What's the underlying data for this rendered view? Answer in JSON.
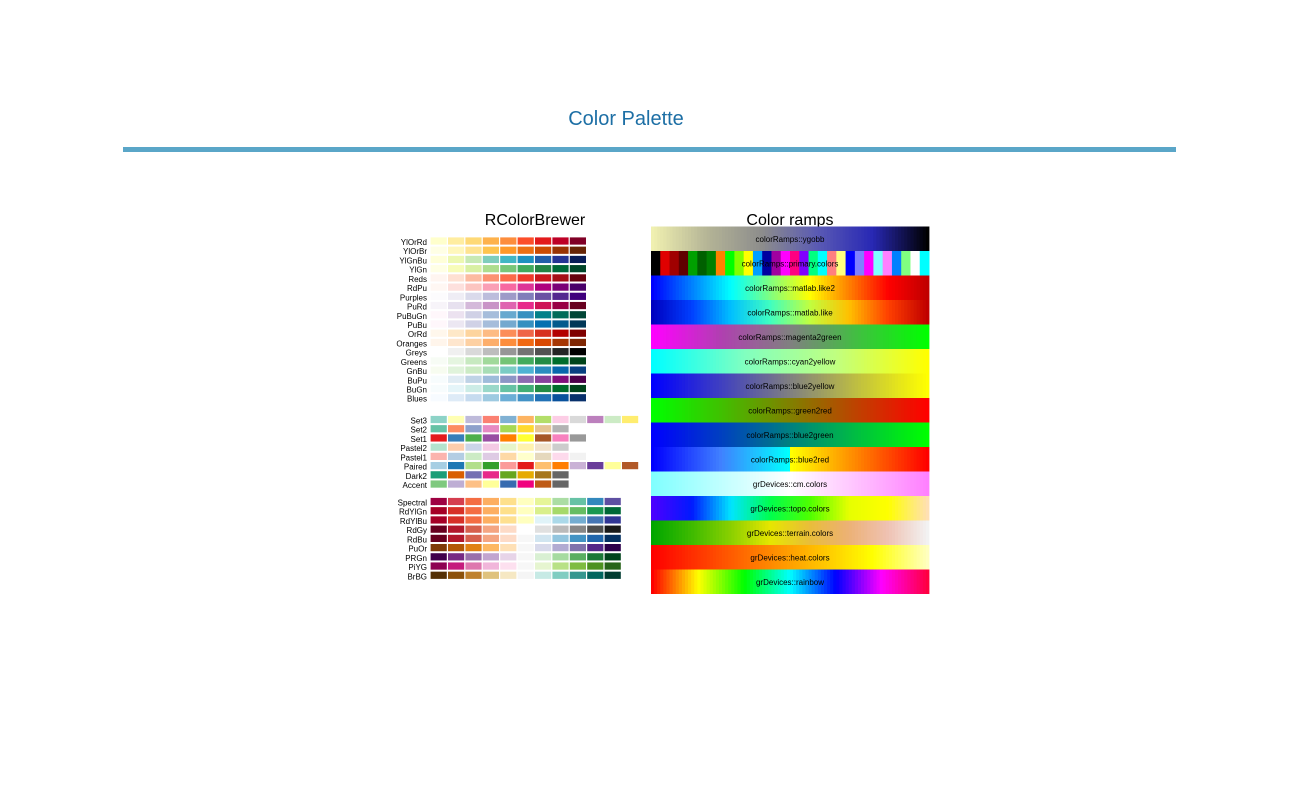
{
  "page": {
    "title": "Color Palette"
  },
  "colors": {
    "title": "#1d6fa5",
    "rule": "#5aa6c8"
  },
  "chart_data": [
    {
      "type": "table",
      "title": "RColorBrewer",
      "groups": [
        {
          "kind": "sequential",
          "palettes": [
            {
              "name": "YlOrRd",
              "colors": [
                "#ffffcc",
                "#ffeda0",
                "#fed976",
                "#feb24c",
                "#fd8d3c",
                "#fc4e2a",
                "#e31a1c",
                "#bd0026",
                "#800026"
              ]
            },
            {
              "name": "YlOrBr",
              "colors": [
                "#ffffe5",
                "#fff7bc",
                "#fee391",
                "#fec44f",
                "#fe9929",
                "#ec7014",
                "#cc4c02",
                "#993404",
                "#662506"
              ]
            },
            {
              "name": "YlGnBu",
              "colors": [
                "#ffffd9",
                "#edf8b1",
                "#c7e9b4",
                "#7fcdbb",
                "#41b6c4",
                "#1d91c0",
                "#225ea8",
                "#253494",
                "#081d58"
              ]
            },
            {
              "name": "YlGn",
              "colors": [
                "#ffffe5",
                "#f7fcb9",
                "#d9f0a3",
                "#addd8e",
                "#78c679",
                "#41ab5d",
                "#238443",
                "#006837",
                "#004529"
              ]
            },
            {
              "name": "Reds",
              "colors": [
                "#fff5f0",
                "#fee0d2",
                "#fcbba1",
                "#fc9272",
                "#fb6a4a",
                "#ef3b2c",
                "#cb181d",
                "#a50f15",
                "#67000d"
              ]
            },
            {
              "name": "RdPu",
              "colors": [
                "#fff7f3",
                "#fde0dd",
                "#fcc5c0",
                "#fa9fb5",
                "#f768a1",
                "#dd3497",
                "#ae017e",
                "#7a0177",
                "#49006a"
              ]
            },
            {
              "name": "Purples",
              "colors": [
                "#fcfbfd",
                "#efedf5",
                "#dadaeb",
                "#bcbddc",
                "#9e9ac8",
                "#807dba",
                "#6a51a3",
                "#54278f",
                "#3f007d"
              ]
            },
            {
              "name": "PuRd",
              "colors": [
                "#f7f4f9",
                "#e7e1ef",
                "#d4b9da",
                "#c994c7",
                "#df65b0",
                "#e7298a",
                "#ce1256",
                "#980043",
                "#67001f"
              ]
            },
            {
              "name": "PuBuGn",
              "colors": [
                "#fff7fb",
                "#ece2f0",
                "#d0d1e6",
                "#a6bddb",
                "#67a9cf",
                "#3690c0",
                "#02818a",
                "#016c59",
                "#014636"
              ]
            },
            {
              "name": "PuBu",
              "colors": [
                "#fff7fb",
                "#ece7f2",
                "#d0d1e6",
                "#a6bddb",
                "#74a9cf",
                "#3690c0",
                "#0570b0",
                "#045a8d",
                "#023858"
              ]
            },
            {
              "name": "OrRd",
              "colors": [
                "#fff7ec",
                "#fee8c8",
                "#fdd49e",
                "#fdbb84",
                "#fc8d59",
                "#ef6548",
                "#d7301f",
                "#b30000",
                "#7f0000"
              ]
            },
            {
              "name": "Oranges",
              "colors": [
                "#fff5eb",
                "#fee6ce",
                "#fdd0a2",
                "#fdae6b",
                "#fd8d3c",
                "#f16913",
                "#d94801",
                "#a63603",
                "#7f2704"
              ]
            },
            {
              "name": "Greys",
              "colors": [
                "#ffffff",
                "#f0f0f0",
                "#d9d9d9",
                "#bdbdbd",
                "#969696",
                "#737373",
                "#525252",
                "#252525",
                "#000000"
              ]
            },
            {
              "name": "Greens",
              "colors": [
                "#f7fcf5",
                "#e5f5e0",
                "#c7e9c0",
                "#a1d99b",
                "#74c476",
                "#41ab5d",
                "#238b45",
                "#006d2c",
                "#00441b"
              ]
            },
            {
              "name": "GnBu",
              "colors": [
                "#f7fcf0",
                "#e0f3db",
                "#ccebc5",
                "#a8ddb5",
                "#7bccc4",
                "#4eb3d3",
                "#2b8cbe",
                "#0868ac",
                "#084081"
              ]
            },
            {
              "name": "BuPu",
              "colors": [
                "#f7fcfd",
                "#e0ecf4",
                "#bfd3e6",
                "#9ebcda",
                "#8c96c6",
                "#8c6bb1",
                "#88419d",
                "#810f7c",
                "#4d004b"
              ]
            },
            {
              "name": "BuGn",
              "colors": [
                "#f7fcfd",
                "#e5f5f9",
                "#ccece6",
                "#99d8c9",
                "#66c2a4",
                "#41ae76",
                "#238b45",
                "#006d2c",
                "#00441b"
              ]
            },
            {
              "name": "Blues",
              "colors": [
                "#f7fbff",
                "#deebf7",
                "#c6dbef",
                "#9ecae1",
                "#6baed6",
                "#4292c6",
                "#2171b5",
                "#08519c",
                "#08306b"
              ]
            }
          ]
        },
        {
          "kind": "qualitative",
          "palettes": [
            {
              "name": "Set3",
              "colors": [
                "#8dd3c7",
                "#ffffb3",
                "#bebada",
                "#fb8072",
                "#80b1d3",
                "#fdb462",
                "#b3de69",
                "#fccde5",
                "#d9d9d9",
                "#bc80bd",
                "#ccebc5",
                "#ffed6f"
              ]
            },
            {
              "name": "Set2",
              "colors": [
                "#66c2a5",
                "#fc8d62",
                "#8da0cb",
                "#e78ac3",
                "#a6d854",
                "#ffd92f",
                "#e5c494",
                "#b3b3b3"
              ]
            },
            {
              "name": "Set1",
              "colors": [
                "#e41a1c",
                "#377eb8",
                "#4daf4a",
                "#984ea3",
                "#ff7f00",
                "#ffff33",
                "#a65628",
                "#f781bf",
                "#999999"
              ]
            },
            {
              "name": "Pastel2",
              "colors": [
                "#b3e2cd",
                "#fdcdac",
                "#cbd5e8",
                "#f4cae4",
                "#e6f5c9",
                "#fff2ae",
                "#f1e2cc",
                "#cccccc"
              ]
            },
            {
              "name": "Pastel1",
              "colors": [
                "#fbb4ae",
                "#b3cde3",
                "#ccebc5",
                "#decbe4",
                "#fed9a6",
                "#ffffcc",
                "#e5d8bd",
                "#fddaec",
                "#f2f2f2"
              ]
            },
            {
              "name": "Paired",
              "colors": [
                "#a6cee3",
                "#1f78b4",
                "#b2df8a",
                "#33a02c",
                "#fb9a99",
                "#e31a1c",
                "#fdbf6f",
                "#ff7f00",
                "#cab2d6",
                "#6a3d9a",
                "#ffff99",
                "#b15928"
              ]
            },
            {
              "name": "Dark2",
              "colors": [
                "#1b9e77",
                "#d95f02",
                "#7570b3",
                "#e7298a",
                "#66a61e",
                "#e6ab02",
                "#a6761d",
                "#666666"
              ]
            },
            {
              "name": "Accent",
              "colors": [
                "#7fc97f",
                "#beaed4",
                "#fdc086",
                "#ffff99",
                "#386cb0",
                "#f0027f",
                "#bf5b17",
                "#666666"
              ]
            }
          ]
        },
        {
          "kind": "diverging",
          "palettes": [
            {
              "name": "Spectral",
              "colors": [
                "#9e0142",
                "#d53e4f",
                "#f46d43",
                "#fdae61",
                "#fee08b",
                "#ffffbf",
                "#e6f598",
                "#abdda4",
                "#66c2a5",
                "#3288bd",
                "#5e4fa2"
              ]
            },
            {
              "name": "RdYlGn",
              "colors": [
                "#a50026",
                "#d73027",
                "#f46d43",
                "#fdae61",
                "#fee08b",
                "#ffffbf",
                "#d9ef8b",
                "#a6d96a",
                "#66bd63",
                "#1a9850",
                "#006837"
              ]
            },
            {
              "name": "RdYlBu",
              "colors": [
                "#a50026",
                "#d73027",
                "#f46d43",
                "#fdae61",
                "#fee090",
                "#ffffbf",
                "#e0f3f8",
                "#abd9e9",
                "#74add1",
                "#4575b4",
                "#313695"
              ]
            },
            {
              "name": "RdGy",
              "colors": [
                "#67001f",
                "#b2182b",
                "#d6604d",
                "#f4a582",
                "#fddbc7",
                "#ffffff",
                "#e0e0e0",
                "#bababa",
                "#878787",
                "#4d4d4d",
                "#1a1a1a"
              ]
            },
            {
              "name": "RdBu",
              "colors": [
                "#67001f",
                "#b2182b",
                "#d6604d",
                "#f4a582",
                "#fddbc7",
                "#f7f7f7",
                "#d1e5f0",
                "#92c5de",
                "#4393c3",
                "#2166ac",
                "#053061"
              ]
            },
            {
              "name": "PuOr",
              "colors": [
                "#7f3b08",
                "#b35806",
                "#e08214",
                "#fdb863",
                "#fee0b6",
                "#f7f7f7",
                "#d8daeb",
                "#b2abd2",
                "#8073ac",
                "#542788",
                "#2d004b"
              ]
            },
            {
              "name": "PRGn",
              "colors": [
                "#40004b",
                "#762a83",
                "#9970ab",
                "#c2a5cf",
                "#e7d4e8",
                "#f7f7f7",
                "#d9f0d3",
                "#a6dba0",
                "#5aae61",
                "#1b7837",
                "#00441b"
              ]
            },
            {
              "name": "PiYG",
              "colors": [
                "#8e0152",
                "#c51b7d",
                "#de77ae",
                "#f1b6da",
                "#fde0ef",
                "#f7f7f7",
                "#e6f5d0",
                "#b8e186",
                "#7fbc41",
                "#4d9221",
                "#276419"
              ]
            },
            {
              "name": "BrBG",
              "colors": [
                "#543005",
                "#8c510a",
                "#bf812d",
                "#dfc27d",
                "#f6e8c3",
                "#f5f5f5",
                "#c7eae5",
                "#80cdc1",
                "#35978f",
                "#01665e",
                "#003c30"
              ]
            }
          ]
        }
      ]
    },
    {
      "type": "table",
      "title": "Color ramps",
      "ramps": [
        {
          "name": "colorRamps::ygobb",
          "kind": "gradient",
          "stops": [
            "#f0f0b0",
            "#b4b496",
            "#8c8c8c",
            "#5a5ab4",
            "#2828b4",
            "#000000"
          ]
        },
        {
          "name": "colorRamps::primary.colors",
          "kind": "blocks",
          "stops": [
            "#000000",
            "#e00000",
            "#a00000",
            "#600000",
            "#00a000",
            "#006000",
            "#008000",
            "#ff8000",
            "#00ff00",
            "#80ff00",
            "#ffff00",
            "#00a0ff",
            "#0000a0",
            "#a000a0",
            "#ff00ff",
            "#ff0080",
            "#8000ff",
            "#00ff80",
            "#00ffff",
            "#ff8080",
            "#ffff80",
            "#0000ff",
            "#8080ff",
            "#ff00ff",
            "#80ffff",
            "#ff80ff",
            "#0080ff",
            "#80ff80",
            "#ffffff",
            "#00ffff"
          ]
        },
        {
          "name": "colorRamps::matlab.like2",
          "kind": "gradient",
          "stops": [
            "#0000ff",
            "#0080ff",
            "#00ffff",
            "#80ff80",
            "#ffff00",
            "#ff8000",
            "#ff0000",
            "#c00000"
          ]
        },
        {
          "name": "colorRamps::matlab.like",
          "kind": "gradient",
          "stops": [
            "#0000c0",
            "#0040ff",
            "#00c0ff",
            "#40ffc0",
            "#c0ff40",
            "#ffc000",
            "#ff4000",
            "#c00000"
          ]
        },
        {
          "name": "colorRamps::magenta2green",
          "kind": "gradient",
          "stops": [
            "#ff00ff",
            "#b040b0",
            "#808080",
            "#40c040",
            "#00ff00"
          ]
        },
        {
          "name": "colorRamps::cyan2yellow",
          "kind": "gradient",
          "stops": [
            "#00ffff",
            "#80ffc0",
            "#c0ff80",
            "#ffff00"
          ]
        },
        {
          "name": "colorRamps::blue2yellow",
          "kind": "gradient",
          "stops": [
            "#0000ff",
            "#4040c0",
            "#808080",
            "#c0c040",
            "#ffff00"
          ]
        },
        {
          "name": "colorRamps::green2red",
          "kind": "gradient",
          "stops": [
            "#00ff00",
            "#40c000",
            "#808000",
            "#c04000",
            "#ff0000"
          ]
        },
        {
          "name": "colorRamps::blue2green",
          "kind": "gradient",
          "stops": [
            "#0000ff",
            "#0040c0",
            "#008080",
            "#00c040",
            "#00ff00"
          ]
        },
        {
          "name": "colorRamps::blue2red",
          "kind": "split",
          "stops": [
            "#0000ff",
            "#4080ff",
            "#00ffff",
            "#ffff00",
            "#ff8000",
            "#ff0000"
          ]
        },
        {
          "name": "grDevices::cm.colors",
          "kind": "gradient",
          "stops": [
            "#80ffff",
            "#c0ffff",
            "#ffffff",
            "#ffc0ff",
            "#ff80ff"
          ]
        },
        {
          "name": "grDevices::topo.colors",
          "kind": "gradient",
          "stops": [
            "#4c00ff",
            "#0019ff",
            "#00e5ff",
            "#00ff4d",
            "#4dff00",
            "#e6ff00",
            "#ffff00",
            "#ffe0b3"
          ]
        },
        {
          "name": "grDevices::terrain.colors",
          "kind": "gradient",
          "stops": [
            "#00a600",
            "#3ebb00",
            "#8bd000",
            "#e6e600",
            "#e9bd3a",
            "#ecb176",
            "#efc2b3",
            "#f2f2f2"
          ]
        },
        {
          "name": "grDevices::heat.colors",
          "kind": "gradient",
          "stops": [
            "#ff0000",
            "#ff4000",
            "#ff8000",
            "#ffbf00",
            "#ffff00",
            "#ffffbf"
          ]
        },
        {
          "name": "grDevices::rainbow",
          "kind": "gradient",
          "stops": [
            "#ff0000",
            "#ffff00",
            "#00ff00",
            "#00ffff",
            "#0000ff",
            "#ff00ff",
            "#ff0040"
          ]
        }
      ]
    }
  ]
}
